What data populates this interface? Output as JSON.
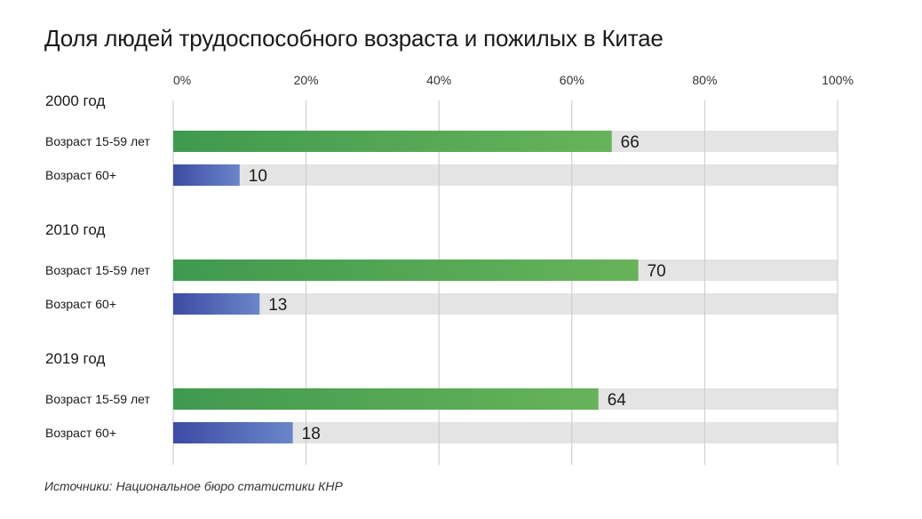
{
  "chart_data": {
    "type": "bar",
    "orientation": "horizontal",
    "title": "Доля людей трудоспособного возраста и пожилых в Китае",
    "x_ticks": [
      "0%",
      "20%",
      "40%",
      "60%",
      "80%",
      "100%"
    ],
    "xlim": [
      0,
      100
    ],
    "grid": true,
    "groups": [
      {
        "label": "2000 год",
        "bars": [
          {
            "label": "Возраст 15-59 лет",
            "value": 66,
            "value_label": "66",
            "color": "green"
          },
          {
            "label": "Возраст 60+",
            "value": 10,
            "value_label": "10",
            "color": "blue"
          }
        ]
      },
      {
        "label": "2010 год",
        "bars": [
          {
            "label": "Возраст 15-59 лет",
            "value": 70,
            "value_label": "70",
            "color": "green"
          },
          {
            "label": "Возраст 60+",
            "value": 13,
            "value_label": "13",
            "color": "blue"
          }
        ]
      },
      {
        "label": "2019 год",
        "bars": [
          {
            "label": "Возраст 15-59 лет",
            "value": 64,
            "value_label": "64",
            "color": "green"
          },
          {
            "label": "Возраст 60+",
            "value": 18,
            "value_label": "18",
            "color": "blue"
          }
        ]
      }
    ]
  },
  "source": "Источники: Национальное бюро статистики КНР",
  "colors": {
    "green_start": "#3f9a4e",
    "green_end": "#67b35a",
    "blue_start": "#3d4ba4",
    "blue_end": "#6a86c9",
    "track": "#e3e4e3",
    "grid": "#c8c8c8"
  }
}
